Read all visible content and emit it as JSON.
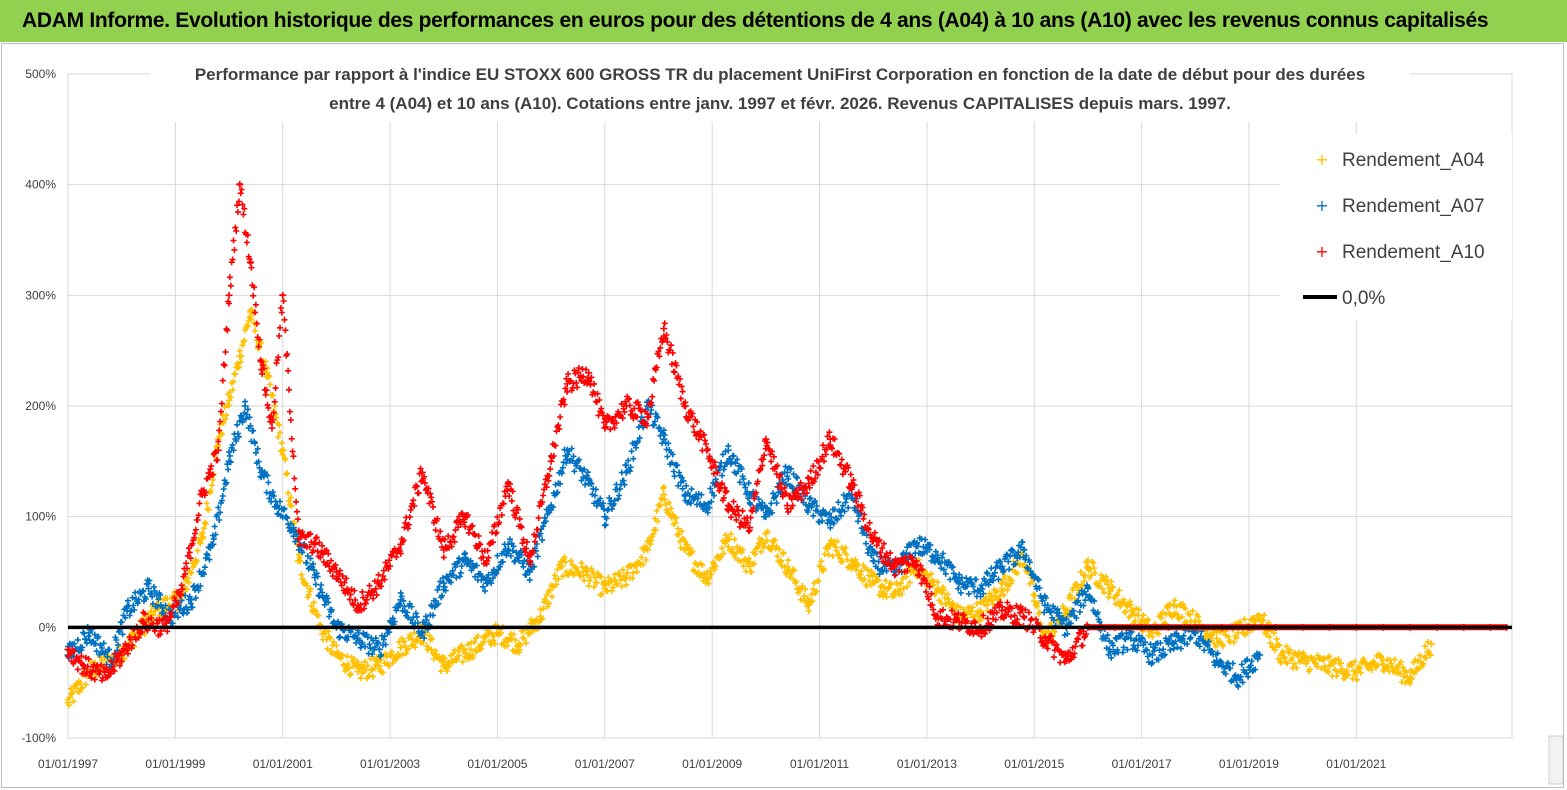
{
  "header": {
    "banner": "ADAM Informe. Evolution historique des performances en euros pour des détentions de 4 ans (A04) à 10 ans (A10) avec les revenus connus capitalisés"
  },
  "chart_data": {
    "type": "scatter",
    "title_line1": "Performance par rapport à l'indice EU STOXX 600 GROSS TR  du placement UniFirst Corporation en fonction de la date de début pour des durées",
    "title_line2": "entre 4 (A04) et 10 ans (A10). Cotations entre janv. 1997 et févr. 2026. Revenus CAPITALISES depuis mars. 1997.",
    "xlabel": "",
    "ylabel": "",
    "xlim": [
      1997.0,
      2023.9
    ],
    "ylim": [
      -100,
      500
    ],
    "yticks": [
      -100,
      0,
      100,
      200,
      300,
      400,
      500
    ],
    "ytick_labels": [
      "-100%",
      "0%",
      "100%",
      "200%",
      "300%",
      "400%",
      "500%"
    ],
    "xticks": [
      1997,
      1999,
      2001,
      2003,
      2005,
      2007,
      2009,
      2011,
      2013,
      2015,
      2017,
      2019,
      2021
    ],
    "xtick_labels": [
      "01/01/1997",
      "01/01/1999",
      "01/01/2001",
      "01/01/2003",
      "01/01/2005",
      "01/01/2007",
      "01/01/2009",
      "01/01/2011",
      "01/01/2013",
      "01/01/2015",
      "01/01/2017",
      "01/01/2019",
      "01/01/2021"
    ],
    "grid": true,
    "legend_position": "top-right",
    "legend": [
      "Rendement_A04",
      "Rendement_A07",
      "Rendement_A10",
      "0,0%"
    ],
    "series": [
      {
        "name": "Rendement_A04",
        "color": "#ffc000",
        "marker": "plus",
        "x": [
          1997.0,
          1997.4,
          1997.9,
          1998.3,
          1998.7,
          1999.1,
          1999.5,
          1999.8,
          2000.0,
          2000.2,
          2000.4,
          2000.7,
          2001.0,
          2001.3,
          2001.7,
          2002.0,
          2002.4,
          2002.8,
          2003.2,
          2003.6,
          2004.0,
          2004.5,
          2005.0,
          2005.4,
          2005.8,
          2006.2,
          2006.6,
          2007.0,
          2007.4,
          2007.8,
          2008.1,
          2008.5,
          2008.9,
          2009.3,
          2009.7,
          2010.0,
          2010.4,
          2010.8,
          2011.2,
          2011.6,
          2012.0,
          2012.4,
          2012.8,
          2013.2,
          2013.6,
          2014.0,
          2014.4,
          2014.8,
          2015.2,
          2015.6,
          2016.0,
          2016.4,
          2016.8,
          2017.2,
          2017.6,
          2018.0,
          2018.4,
          2018.8,
          2019.2,
          2019.6,
          2020.0,
          2020.5,
          2021.0,
          2021.5,
          2022.0,
          2022.4
        ],
        "y": [
          -68,
          -40,
          -28,
          -5,
          18,
          25,
          80,
          170,
          205,
          245,
          285,
          230,
          160,
          60,
          0,
          -25,
          -40,
          -35,
          -18,
          -5,
          -35,
          -20,
          -5,
          -15,
          10,
          55,
          50,
          35,
          45,
          70,
          120,
          70,
          45,
          80,
          55,
          85,
          55,
          20,
          75,
          60,
          40,
          30,
          55,
          35,
          10,
          15,
          35,
          65,
          -10,
          15,
          55,
          35,
          15,
          -5,
          20,
          5,
          -10,
          -5,
          10,
          -25,
          -30,
          -35,
          -40,
          -30,
          -45,
          -15
        ]
      },
      {
        "name": "Rendement_A07",
        "color": "#0070c0",
        "marker": "plus",
        "x": [
          1997.0,
          1997.4,
          1997.8,
          1998.1,
          1998.5,
          1998.9,
          1999.3,
          1999.7,
          2000.0,
          2000.3,
          2000.6,
          2000.9,
          2001.2,
          2001.6,
          2002.0,
          2002.4,
          2002.8,
          2003.2,
          2003.6,
          2004.0,
          2004.4,
          2004.8,
          2005.2,
          2005.6,
          2006.0,
          2006.3,
          2006.7,
          2007.0,
          2007.4,
          2007.8,
          2008.1,
          2008.5,
          2008.9,
          2009.3,
          2009.7,
          2010.0,
          2010.4,
          2010.8,
          2011.2,
          2011.6,
          2012.0,
          2012.4,
          2012.8,
          2013.2,
          2013.6,
          2014.0,
          2014.4,
          2014.8,
          2015.2,
          2015.6,
          2016.0,
          2016.4,
          2016.8,
          2017.2,
          2017.6,
          2018.0,
          2018.4,
          2018.8,
          2019.2
        ],
        "y": [
          -25,
          -5,
          -30,
          15,
          35,
          10,
          25,
          75,
          150,
          200,
          140,
          110,
          90,
          45,
          0,
          -10,
          -20,
          25,
          -5,
          40,
          60,
          40,
          75,
          50,
          110,
          160,
          130,
          100,
          140,
          200,
          170,
          120,
          110,
          160,
          120,
          100,
          140,
          110,
          95,
          120,
          60,
          50,
          75,
          65,
          40,
          35,
          55,
          70,
          20,
          0,
          35,
          -20,
          -10,
          -25,
          -15,
          -5,
          -30,
          -45,
          -25
        ]
      },
      {
        "name": "Rendement_A10",
        "color": "#ff0000",
        "marker": "plus",
        "x": [
          1997.0,
          1997.3,
          1997.7,
          1998.0,
          1998.4,
          1998.8,
          1999.1,
          1999.5,
          1999.8,
          2000.0,
          2000.2,
          2000.4,
          2000.6,
          2000.8,
          2001.0,
          2001.3,
          2001.6,
          2002.0,
          2002.4,
          2002.8,
          2003.2,
          2003.6,
          2004.0,
          2004.4,
          2004.8,
          2005.2,
          2005.6,
          2006.0,
          2006.3,
          2006.7,
          2007.0,
          2007.4,
          2007.8,
          2008.1,
          2008.5,
          2008.9,
          2009.3,
          2009.7,
          2010.0,
          2010.4,
          2010.8,
          2011.2,
          2011.6,
          2012.0,
          2012.4,
          2012.8,
          2013.2,
          2013.6,
          2014.0,
          2014.4,
          2014.8,
          2015.2,
          2015.6,
          2016.0,
          2016.5,
          2017.0,
          2017.5,
          2018.0,
          2018.5,
          2019.0,
          2019.5,
          2020.0,
          2020.5,
          2021.0,
          2021.5,
          2022.0,
          2022.5,
          2023.0,
          2023.5,
          2023.8
        ],
        "y": [
          -20,
          -35,
          -45,
          -25,
          5,
          0,
          30,
          120,
          160,
          300,
          400,
          330,
          240,
          180,
          300,
          80,
          75,
          50,
          20,
          40,
          75,
          140,
          70,
          100,
          60,
          130,
          60,
          150,
          220,
          230,
          180,
          200,
          190,
          270,
          200,
          160,
          110,
          90,
          170,
          110,
          130,
          170,
          130,
          80,
          55,
          60,
          10,
          5,
          0,
          15,
          10,
          -10,
          -30,
          0,
          0,
          0,
          0,
          0,
          0,
          0,
          0,
          0,
          0,
          0,
          0,
          0,
          0,
          0,
          0,
          0
        ]
      },
      {
        "name": "0,0%",
        "color": "#000000",
        "marker": "line",
        "x": [
          1997.0,
          2023.9
        ],
        "y": [
          0,
          0
        ]
      }
    ]
  }
}
